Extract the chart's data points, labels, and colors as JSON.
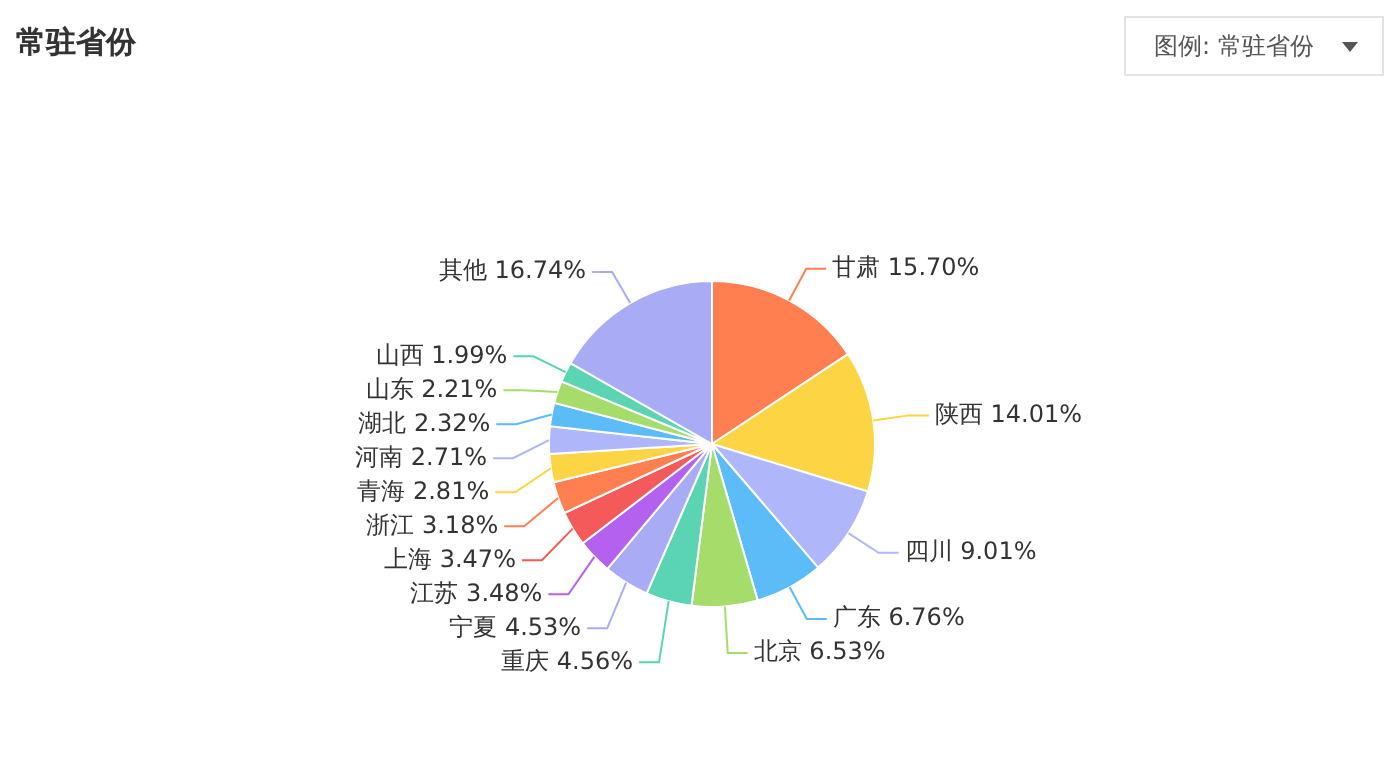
{
  "chart_data": {
    "type": "pie",
    "title": "常驻省份",
    "categories": [
      "甘肃",
      "陕西",
      "四川",
      "广东",
      "北京",
      "重庆",
      "宁夏",
      "江苏",
      "上海",
      "浙江",
      "青海",
      "河南",
      "湖北",
      "山东",
      "山西",
      "其他"
    ],
    "values": [
      15.7,
      14.01,
      9.01,
      6.76,
      6.53,
      4.56,
      4.53,
      3.48,
      3.47,
      3.18,
      2.81,
      2.71,
      2.32,
      2.21,
      1.99,
      16.74
    ],
    "value_labels": [
      "15.70%",
      "14.01%",
      "9.01%",
      "6.76%",
      "6.53%",
      "4.56%",
      "4.53%",
      "3.48%",
      "3.47%",
      "3.18%",
      "2.81%",
      "2.71%",
      "2.32%",
      "2.21%",
      "1.99%",
      "16.74%"
    ],
    "colors": [
      "#ff7f50",
      "#fcd444",
      "#b0b6fa",
      "#5bbcf8",
      "#a6dc6a",
      "#5bd4b4",
      "#a9acf5",
      "#b561f0",
      "#f55a5a",
      "#ff7f50",
      "#fcd444",
      "#b0b6fa",
      "#5bbcf8",
      "#a6dc6a",
      "#5bd4b4",
      "#a9acf5"
    ],
    "legend": false,
    "annotations": [
      "图例: 常驻省份"
    ]
  }
}
